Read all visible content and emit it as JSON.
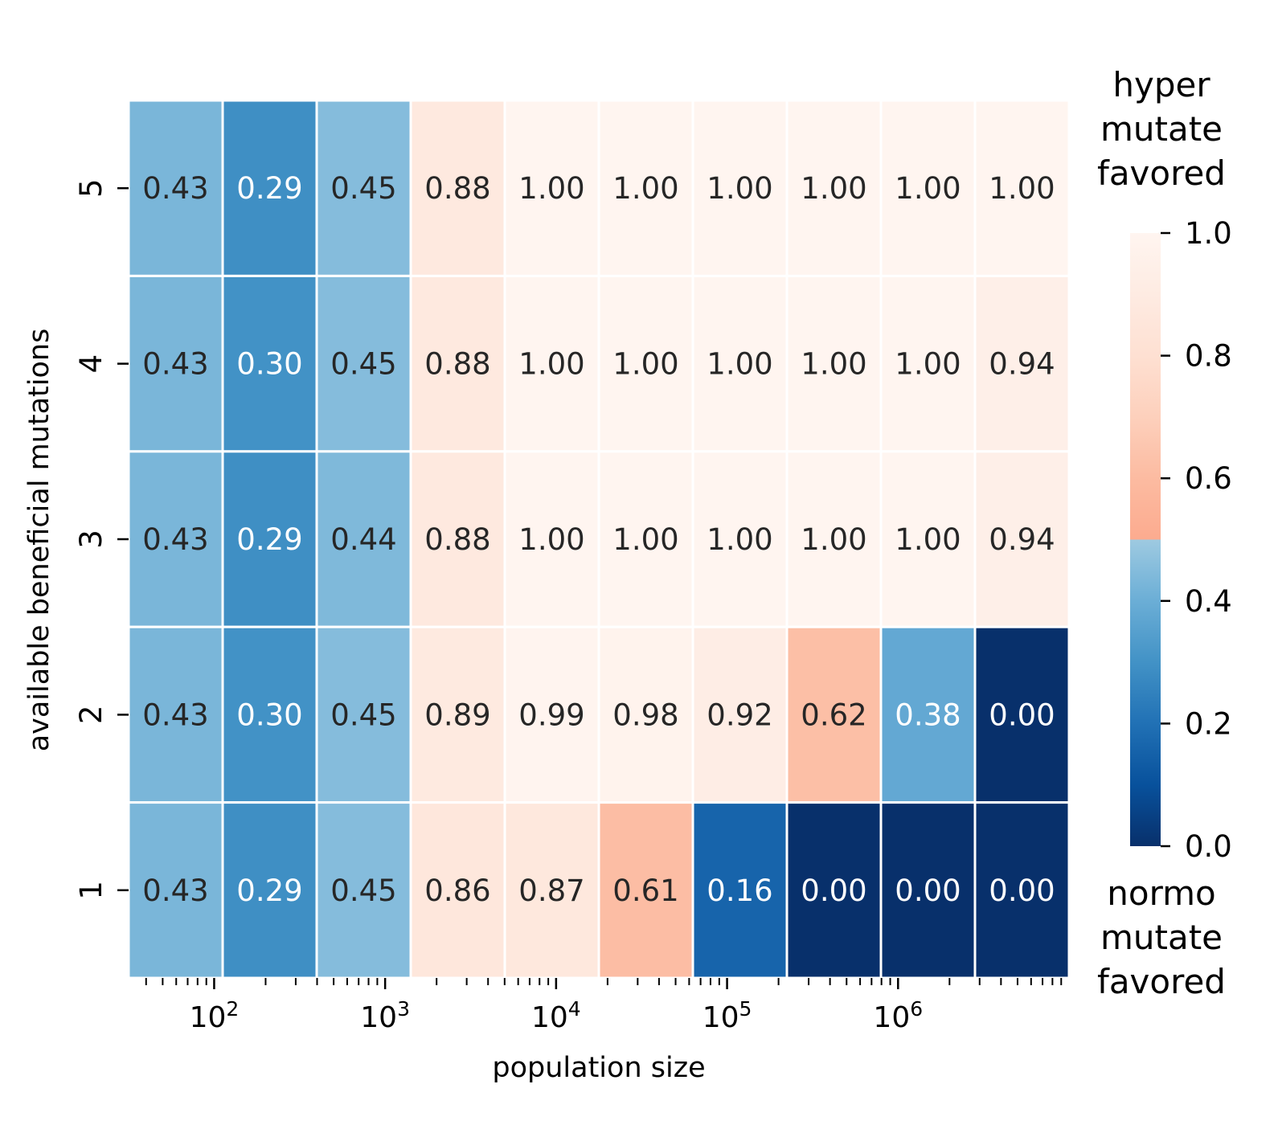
{
  "chart_data": {
    "type": "heatmap",
    "title": "",
    "xlabel": "population size",
    "ylabel": "available beneficial mutations",
    "x_scale": "log",
    "x_range": [
      31.6,
      10000000
    ],
    "x_major_ticks": [
      {
        "value": 100,
        "base": "10",
        "exp": "2"
      },
      {
        "value": 1000,
        "base": "10",
        "exp": "3"
      },
      {
        "value": 10000,
        "base": "10",
        "exp": "4"
      },
      {
        "value": 100000,
        "base": "10",
        "exp": "5"
      },
      {
        "value": 1000000,
        "base": "10",
        "exp": "6"
      }
    ],
    "y_categories": [
      "5",
      "4",
      "3",
      "2",
      "1"
    ],
    "values": [
      [
        0.43,
        0.29,
        0.45,
        0.88,
        1.0,
        1.0,
        1.0,
        1.0,
        1.0,
        1.0
      ],
      [
        0.43,
        0.3,
        0.45,
        0.88,
        1.0,
        1.0,
        1.0,
        1.0,
        1.0,
        0.94
      ],
      [
        0.43,
        0.29,
        0.44,
        0.88,
        1.0,
        1.0,
        1.0,
        1.0,
        1.0,
        0.94
      ],
      [
        0.43,
        0.3,
        0.45,
        0.89,
        0.99,
        0.98,
        0.92,
        0.62,
        0.38,
        0.0
      ],
      [
        0.43,
        0.29,
        0.45,
        0.86,
        0.87,
        0.61,
        0.16,
        0.0,
        0.0,
        0.0
      ]
    ],
    "value_labels": [
      [
        "0.43",
        "0.29",
        "0.45",
        "0.88",
        "1.00",
        "1.00",
        "1.00",
        "1.00",
        "1.00",
        "1.00"
      ],
      [
        "0.43",
        "0.30",
        "0.45",
        "0.88",
        "1.00",
        "1.00",
        "1.00",
        "1.00",
        "1.00",
        "0.94"
      ],
      [
        "0.43",
        "0.29",
        "0.44",
        "0.88",
        "1.00",
        "1.00",
        "1.00",
        "1.00",
        "1.00",
        "0.94"
      ],
      [
        "0.43",
        "0.30",
        "0.45",
        "0.89",
        "0.99",
        "0.98",
        "0.92",
        "0.62",
        "0.38",
        "0.00"
      ],
      [
        "0.43",
        "0.29",
        "0.45",
        "0.86",
        "0.87",
        "0.61",
        "0.16",
        "0.00",
        "0.00",
        "0.00"
      ]
    ],
    "colorbar": {
      "range": [
        0.0,
        1.0
      ],
      "tick_labels": [
        "0.0",
        "0.2",
        "0.4",
        "0.6",
        "0.8",
        "1.0"
      ],
      "top_label": [
        "hyper",
        "mutate",
        "favored"
      ],
      "bottom_label": [
        "normo",
        "mutate",
        "favored"
      ],
      "colormap": "diverging: Blues (0.0 to 0.5) / Reds (0.5 to 1.0)",
      "low_color": "#08306b",
      "mid_low_color": "#9ecae1",
      "mid_high_color": "#fcab8f",
      "high_color": "#fff5f0"
    },
    "grid": false,
    "cell_border_color": "#ffffff"
  }
}
